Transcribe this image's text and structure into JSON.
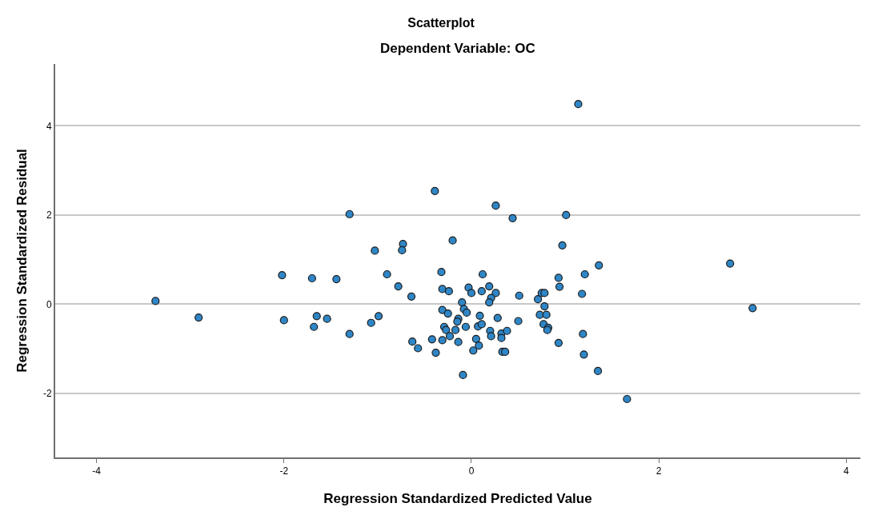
{
  "chart_data": {
    "type": "scatter",
    "title": "Scatterplot",
    "subtitle": "Dependent Variable: OC",
    "xlabel": "Regression Standardized Predicted Value",
    "ylabel": "Regression Standardized Residual",
    "xlim": [
      -4.44,
      4.15
    ],
    "ylim": [
      -3.44,
      5.39
    ],
    "xticks": [
      -4,
      -2,
      0,
      2,
      4
    ],
    "yticks": [
      -2,
      0,
      2,
      4
    ],
    "grid": "y",
    "marker": "circle",
    "series": [
      {
        "color": "#2f86c6",
        "x": [
          1.14,
          -0.39,
          -1.3,
          -1.03,
          -0.73,
          -0.74,
          -2.02,
          -1.7,
          -1.44,
          -0.9,
          -0.78,
          -0.64,
          -0.32,
          -0.31,
          -2.0,
          -1.65,
          -1.54,
          -1.68,
          -1.3,
          -1.07,
          -0.99,
          -0.31,
          -0.63,
          -0.57,
          -0.42,
          -0.31,
          -0.38,
          -0.29,
          0.26,
          0.44,
          1.01,
          -0.2,
          0.97,
          1.36,
          0.12,
          1.21,
          0.93,
          0.94,
          1.18,
          -0.24,
          -0.03,
          0.0,
          0.11,
          0.19,
          0.26,
          0.21,
          0.19,
          0.51,
          0.71,
          0.75,
          0.78,
          0.78,
          0.73,
          0.8,
          0.77,
          0.82,
          0.81,
          -0.1,
          -0.08,
          -0.05,
          -0.25,
          -0.14,
          -0.15,
          0.09,
          0.28,
          0.5,
          -0.27,
          -0.17,
          -0.06,
          -0.23,
          -0.14,
          0.07,
          0.11,
          0.2,
          0.21,
          0.32,
          0.32,
          0.38,
          0.05,
          0.08,
          0.02,
          0.33,
          0.36,
          -0.09,
          0.93,
          1.19,
          1.2,
          1.35,
          -3.37,
          -2.91,
          2.76,
          3.0,
          1.66
        ],
        "values": [
          4.49,
          2.54,
          2.02,
          1.2,
          1.35,
          1.21,
          0.65,
          0.58,
          0.56,
          0.67,
          0.4,
          0.17,
          0.72,
          0.34,
          -0.36,
          -0.27,
          -0.33,
          -0.51,
          -0.67,
          -0.42,
          -0.27,
          -0.13,
          -0.84,
          -0.99,
          -0.79,
          -0.81,
          -1.09,
          -0.51,
          2.21,
          1.93,
          2.0,
          1.43,
          1.32,
          0.87,
          0.67,
          0.67,
          0.59,
          0.39,
          0.23,
          0.29,
          0.37,
          0.25,
          0.29,
          0.4,
          0.25,
          0.14,
          0.04,
          0.19,
          0.11,
          0.25,
          0.25,
          -0.05,
          -0.24,
          -0.24,
          -0.45,
          -0.53,
          -0.58,
          0.04,
          -0.11,
          -0.19,
          -0.21,
          -0.33,
          -0.39,
          -0.26,
          -0.31,
          -0.38,
          -0.58,
          -0.58,
          -0.51,
          -0.72,
          -0.85,
          -0.5,
          -0.45,
          -0.6,
          -0.72,
          -0.66,
          -0.76,
          -0.6,
          -0.78,
          -0.93,
          -1.04,
          -1.07,
          -1.07,
          -1.59,
          -0.87,
          -0.67,
          -1.13,
          -1.5,
          0.07,
          -0.3,
          0.91,
          -0.09,
          -2.13
        ]
      }
    ]
  }
}
